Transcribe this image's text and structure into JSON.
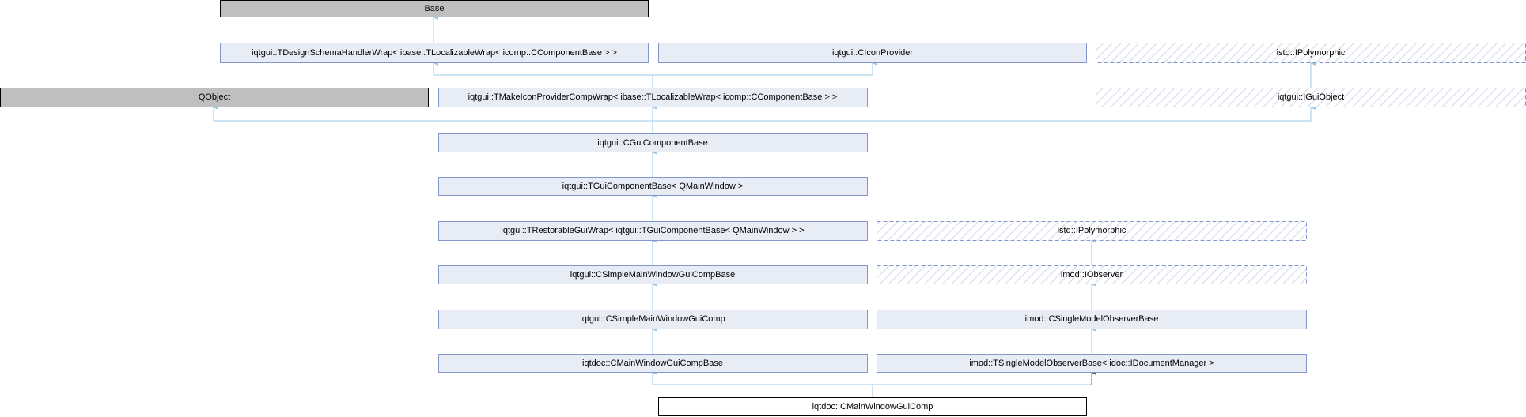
{
  "colors": {
    "node_fill": "#e8ecf4",
    "node_border": "#8496cc",
    "external_fill": "#bfbfbf",
    "edge_public": "#9cc9e6",
    "edge_protected": "#2a7a1e"
  },
  "nodes": {
    "base": "Base",
    "design_schema": "iqtgui::TDesignSchemaHandlerWrap< ibase::TLocalizableWrap< icomp::CComponentBase > >",
    "icon_provider": "iqtgui::CIconProvider",
    "polymorphic_top": "istd::IPolymorphic",
    "qobject": "QObject",
    "make_icon": "iqtgui::TMakeIconProviderCompWrap< ibase::TLocalizableWrap< icomp::CComponentBase > >",
    "gui_object": "iqtgui::IGuiObject",
    "gui_component_base": "iqtgui::CGuiComponentBase",
    "tgui_component_base": "iqtgui::TGuiComponentBase< QMainWindow >",
    "restorable": "iqtgui::TRestorableGuiWrap< iqtgui::TGuiComponentBase< QMainWindow > >",
    "polymorphic_mid": "istd::IPolymorphic",
    "simple_main_base": "iqtgui::CSimpleMainWindowGuiCompBase",
    "observer": "imod::IObserver",
    "simple_main": "iqtgui::CSimpleMainWindowGuiComp",
    "single_model_observer": "imod::CSingleModelObserverBase",
    "main_window_base": "iqtdoc::CMainWindowGuiCompBase",
    "tsingle_model_observer": "imod::TSingleModelObserverBase< idoc::IDocumentManager >",
    "main_window": "iqtdoc::CMainWindowGuiComp"
  }
}
